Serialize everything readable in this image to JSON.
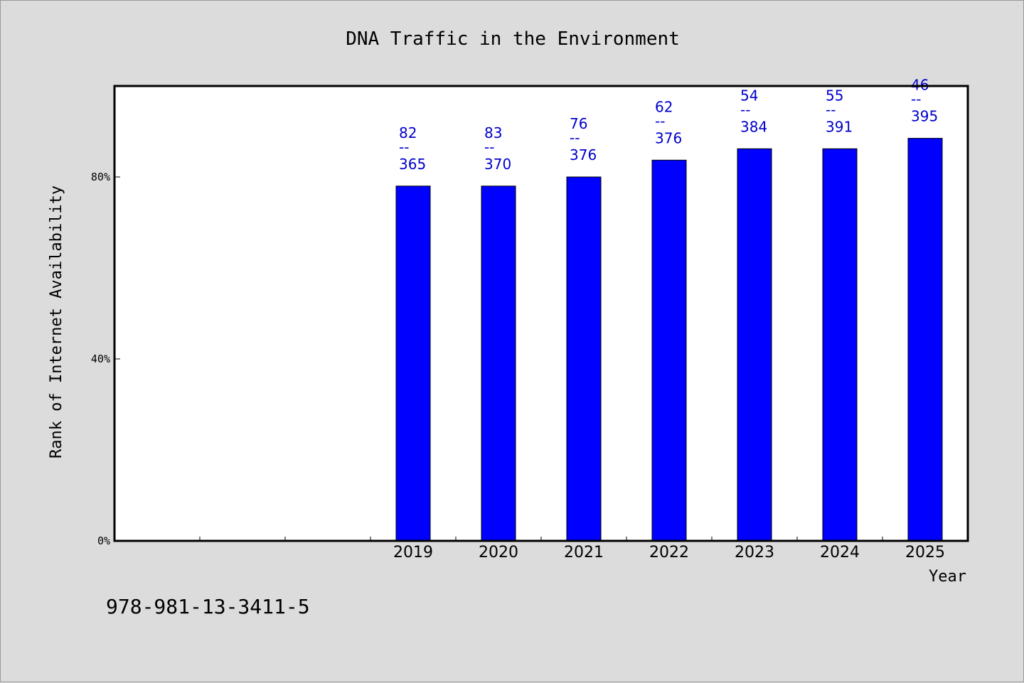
{
  "chart_data": {
    "type": "bar",
    "title": "DNA Traffic in the Environment",
    "xlabel": "Year",
    "ylabel": "Rank of Internet Availability",
    "categories": [
      "",
      "",
      "",
      "2019",
      "2020",
      "2021",
      "2022",
      "2023",
      "2024",
      "2025"
    ],
    "values": [
      null,
      null,
      null,
      0.78,
      0.78,
      0.8,
      0.837,
      0.862,
      0.862,
      0.885
    ],
    "data_labels": [
      null,
      null,
      null,
      {
        "top": "82",
        "sep": "--",
        "bottom": "365"
      },
      {
        "top": "83",
        "sep": "--",
        "bottom": "370"
      },
      {
        "top": "76",
        "sep": "--",
        "bottom": "376"
      },
      {
        "top": "62",
        "sep": "--",
        "bottom": "376"
      },
      {
        "top": "54",
        "sep": "--",
        "bottom": "384"
      },
      {
        "top": "55",
        "sep": "--",
        "bottom": "391"
      },
      {
        "top": "46",
        "sep": "--",
        "bottom": "395"
      }
    ],
    "yticks": [
      {
        "value": 0,
        "label": "0%"
      },
      {
        "value": 0.4,
        "label": "40%"
      },
      {
        "value": 0.8,
        "label": "80%"
      }
    ],
    "ylim": [
      0,
      1.0
    ],
    "grid": false,
    "colors": {
      "bar": "#0000ff",
      "label": "#0000cc",
      "background": "#dcdcdc",
      "plot": "#ffffff"
    }
  },
  "footer_text": "978-981-13-3411-5"
}
